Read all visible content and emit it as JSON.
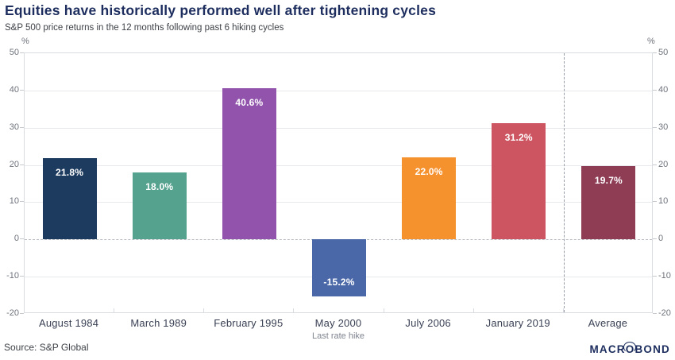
{
  "header": {
    "title": "Equities have historically performed well after tightening cycles",
    "subtitle": "S&P 500 price returns in the 12 months following past 6 hiking cycles"
  },
  "chart_data": {
    "type": "bar",
    "title": "Equities have historically performed well after tightening cycles",
    "subtitle": "S&P 500 price returns in the 12 months following past 6 hiking cycles",
    "categories": [
      "August 1984",
      "March 1989",
      "February 1995",
      "May 2000",
      "July 2006",
      "January 2019",
      "Average"
    ],
    "values": [
      21.8,
      18.0,
      40.6,
      -15.2,
      22.0,
      31.2,
      19.7
    ],
    "value_labels": [
      "21.8%",
      "18.0%",
      "40.6%",
      "-15.2%",
      "22.0%",
      "31.2%",
      "19.7%"
    ],
    "bar_colors": [
      "#1d3b5f",
      "#55a28e",
      "#9153ab",
      "#4a68a8",
      "#f6922e",
      "#cd5561",
      "#8e3d55"
    ],
    "unit": "%",
    "xlabel": "Last rate hike",
    "ylabel": "",
    "ylim": [
      -20,
      50
    ],
    "yticks": [
      50,
      40,
      30,
      20,
      10,
      0,
      -10,
      -20
    ],
    "grid": true,
    "zero_line_style": "dashed",
    "separator_before_category": "Average",
    "legend": "none"
  },
  "footer": {
    "source": "Source: S&P Global",
    "logo_prefix": "MACR",
    "logo_o": "O",
    "logo_suffix": "BOND"
  }
}
